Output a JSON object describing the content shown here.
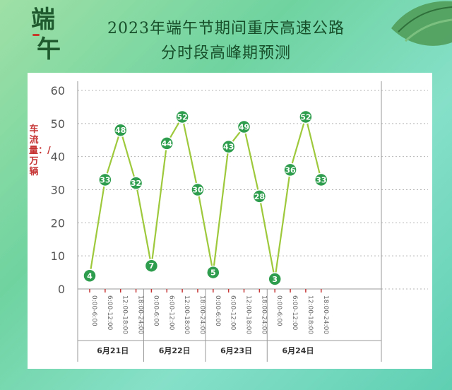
{
  "header": {
    "title_line1": "2023年端午节期间重庆高速公路",
    "title_line2": "分时段高峰期预测",
    "brand_text_1": "端",
    "brand_text_2": "午"
  },
  "colors": {
    "line": "#9ec93c",
    "marker": "#2e9d4d",
    "tick_label_red": "#c63434",
    "title": "#174f2a"
  },
  "chart_data": {
    "type": "line",
    "title": "",
    "ylabel": "车流量：/万辆",
    "ylim": [
      0,
      60
    ],
    "yticks": [
      0,
      10,
      20,
      30,
      40,
      50,
      60
    ],
    "grid": "horizontal dotted",
    "slots": [
      "0:00-6:00",
      "6:00-12:00",
      "12:00-18:00",
      "18:00-24:00"
    ],
    "groups": [
      "6月21日",
      "6月22日",
      "6月23日",
      "6月24日"
    ],
    "x": [
      "6月21日 0:00-6:00",
      "6月21日 6:00-12:00",
      "6月21日 12:00-18:00",
      "6月21日 18:00-24:00",
      "6月22日 0:00-6:00",
      "6月22日 6:00-12:00",
      "6月22日 12:00-18:00",
      "6月22日 18:00-24:00",
      "6月23日 0:00-6:00",
      "6月23日 6:00-12:00",
      "6月23日 12:00-18:00",
      "6月23日 18:00-24:00",
      "6月24日 0:00-6:00",
      "6月24日 6:00-12:00",
      "6月24日 12:00-18:00",
      "6月24日 18:00-24:00"
    ],
    "values": [
      4,
      33,
      48,
      32,
      7,
      44,
      52,
      30,
      5,
      43,
      49,
      28,
      3,
      36,
      52,
      33
    ]
  }
}
